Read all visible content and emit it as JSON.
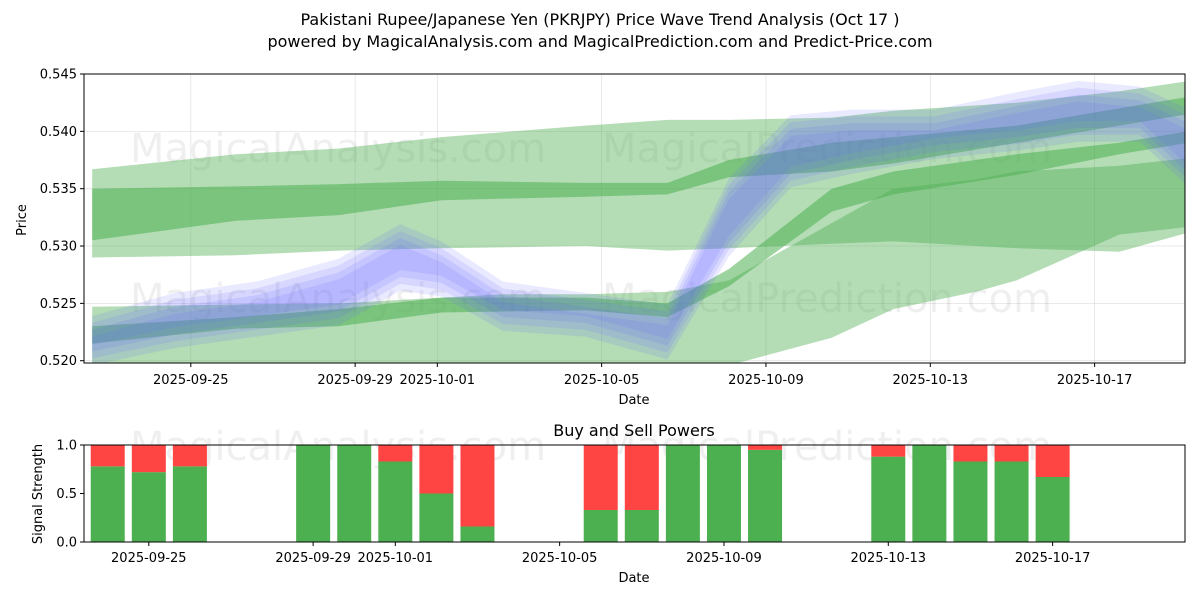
{
  "title_line1": "Pakistani Rupee/Japanese Yen (PKRJPY) Price Wave Trend Analysis (Oct 17 )",
  "title_line2": "powered by MagicalAnalysis.com and MagicalPrediction.com and Predict-Price.com",
  "watermarks": [
    "MagicalAnalysis.com",
    "MagicalPrediction.com"
  ],
  "colors": {
    "green_band": "#4caf50",
    "blue_band": "#6666ff",
    "buy": "#4caf50",
    "sell": "#ff4444",
    "grid": "#b0b0b0"
  },
  "chart_data": [
    {
      "type": "area",
      "title": "",
      "xlabel": "Date",
      "ylabel": "Price",
      "xlim": [
        "2025-09-21.4",
        "2025-10-18.2"
      ],
      "ylim": [
        0.5198,
        0.545
      ],
      "yticks": [
        0.52,
        0.525,
        0.53,
        0.535,
        0.54,
        0.545
      ],
      "ytick_labels": [
        "0.520",
        "0.525",
        "0.530",
        "0.535",
        "0.540",
        "0.545"
      ],
      "xticks": [
        "2025-09-25",
        "2025-09-29",
        "2025-10-01",
        "2025-10-05",
        "2025-10-09",
        "2025-10-13",
        "2025-10-17"
      ],
      "grid": true,
      "series": [
        {
          "name": "upper green band",
          "color": "green",
          "x": [
            0,
            7,
            12,
            17,
            24,
            28,
            31,
            36,
            39,
            45,
            50,
            55
          ],
          "low": [
            0.529,
            0.5292,
            0.5296,
            0.5298,
            0.53,
            0.5296,
            0.5298,
            0.5302,
            0.5304,
            0.5298,
            0.5295,
            0.532
          ],
          "high": [
            0.5367,
            0.538,
            0.5385,
            0.5395,
            0.5405,
            0.541,
            0.541,
            0.5412,
            0.5418,
            0.5425,
            0.5435,
            0.5448
          ]
        },
        {
          "name": "upper green core",
          "color": "green",
          "x": [
            0,
            7,
            12,
            17,
            24,
            28,
            31,
            36,
            39,
            45,
            50,
            55
          ],
          "low": [
            0.5305,
            0.5322,
            0.5327,
            0.534,
            0.5343,
            0.5345,
            0.536,
            0.5365,
            0.5372,
            0.539,
            0.5405,
            0.542
          ],
          "high": [
            0.535,
            0.5352,
            0.5354,
            0.5357,
            0.5355,
            0.5355,
            0.5375,
            0.539,
            0.5395,
            0.5405,
            0.542,
            0.5435
          ]
        },
        {
          "name": "lower green band",
          "color": "green",
          "x": [
            0,
            7,
            12,
            17,
            20,
            24,
            28,
            31,
            36,
            39,
            43,
            45,
            50,
            55
          ],
          "low": [
            0.5195,
            0.5196,
            0.5196,
            0.5196,
            0.5196,
            0.5196,
            0.5196,
            0.5196,
            0.522,
            0.5245,
            0.526,
            0.527,
            0.531,
            0.532
          ],
          "high": [
            0.5247,
            0.5249,
            0.525,
            0.5255,
            0.5258,
            0.5258,
            0.526,
            0.527,
            0.532,
            0.535,
            0.5358,
            0.5365,
            0.537,
            0.538
          ]
        },
        {
          "name": "lower green core",
          "color": "green",
          "x": [
            0,
            7,
            12,
            17,
            24,
            28,
            31,
            36,
            39,
            45,
            50,
            55
          ],
          "low": [
            0.5215,
            0.5228,
            0.523,
            0.5242,
            0.5244,
            0.5238,
            0.5265,
            0.533,
            0.5345,
            0.5362,
            0.538,
            0.5395
          ],
          "high": [
            0.523,
            0.5238,
            0.5245,
            0.5255,
            0.5255,
            0.525,
            0.528,
            0.535,
            0.5365,
            0.538,
            0.539,
            0.5405
          ]
        },
        {
          "name": "blue wave",
          "color": "blue",
          "x": [
            0,
            4,
            8,
            12,
            15,
            17,
            20,
            24,
            28,
            31,
            34,
            37,
            41,
            45,
            48,
            51,
            54
          ],
          "low": [
            0.5205,
            0.522,
            0.523,
            0.524,
            0.527,
            0.5265,
            0.5235,
            0.523,
            0.521,
            0.53,
            0.536,
            0.5372,
            0.5385,
            0.5392,
            0.54,
            0.54,
            0.535
          ],
          "high": [
            0.523,
            0.525,
            0.526,
            0.528,
            0.531,
            0.5295,
            0.526,
            0.525,
            0.524,
            0.535,
            0.5405,
            0.541,
            0.541,
            0.5425,
            0.5435,
            0.543,
            0.5405
          ]
        }
      ]
    },
    {
      "type": "bar",
      "title": "Buy and Sell Powers",
      "xlabel": "Date",
      "ylabel": "Signal Strength",
      "ylim": [
        0,
        1
      ],
      "yticks": [
        0,
        0.5,
        1
      ],
      "ytick_labels": [
        "0.0",
        "0.5",
        "1.0"
      ],
      "xticks": [
        "2025-09-25",
        "2025-09-29",
        "2025-10-01",
        "2025-10-05",
        "2025-10-09",
        "2025-10-13",
        "2025-10-17"
      ],
      "categories": [
        "2025-09-24",
        "2025-09-25",
        "2025-09-26",
        "2025-09-29",
        "2025-09-30",
        "2025-10-01",
        "2025-10-02",
        "2025-10-03",
        "2025-10-06",
        "2025-10-07",
        "2025-10-08",
        "2025-10-09",
        "2025-10-10",
        "2025-10-13",
        "2025-10-14",
        "2025-10-15",
        "2025-10-16",
        "2025-10-17"
      ],
      "series": [
        {
          "name": "Buy",
          "values": [
            0.78,
            0.72,
            0.78,
            1.0,
            1.0,
            0.83,
            0.5,
            0.16,
            0.33,
            0.33,
            1.0,
            1.0,
            0.95,
            0.88,
            1.0,
            0.83,
            0.83,
            0.67
          ]
        },
        {
          "name": "Sell",
          "values": [
            0.22,
            0.28,
            0.22,
            0.0,
            0.0,
            0.17,
            0.5,
            0.84,
            0.67,
            0.67,
            0.0,
            0.0,
            0.05,
            0.12,
            0.0,
            0.17,
            0.17,
            0.33
          ]
        }
      ]
    }
  ]
}
